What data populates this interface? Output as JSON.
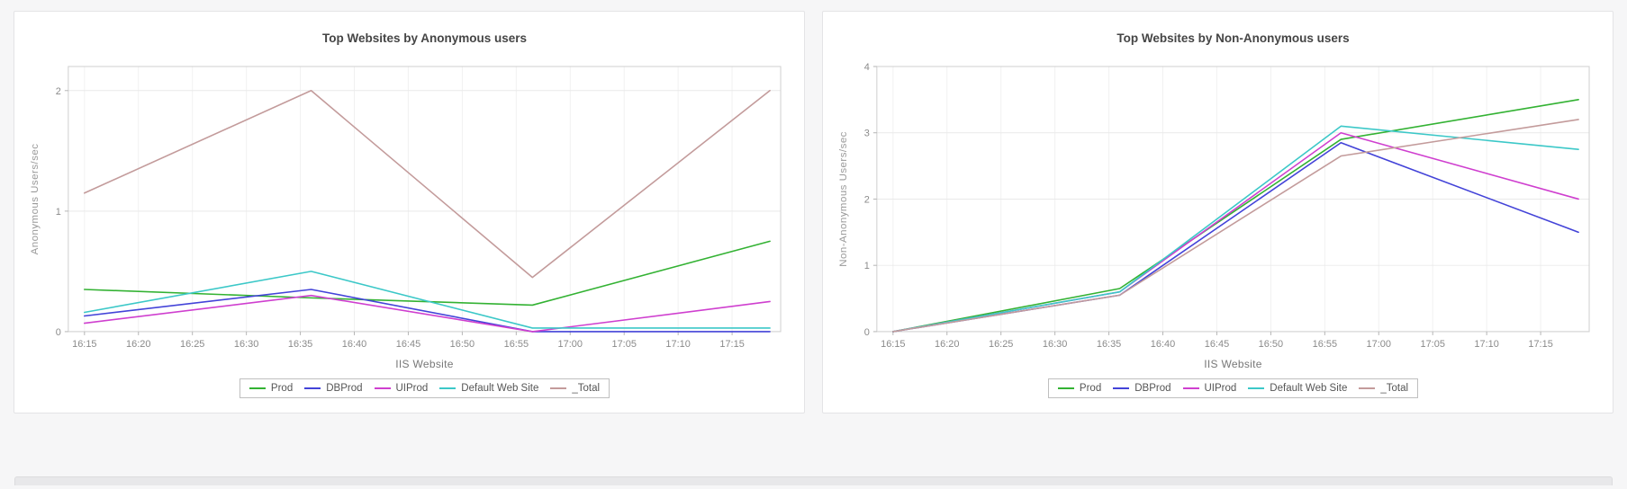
{
  "page": {
    "background_color": "#f6f6f7",
    "panel_border_color": "#e4e4e6"
  },
  "chart_data": [
    {
      "id": "anonymous-users",
      "type": "line",
      "title": "Top Websites by Anonymous users",
      "xlabel": "IIS Website",
      "ylabel": "Anonymous Users/sec",
      "x_tick_labels": [
        "16:15",
        "16:20",
        "16:25",
        "16:30",
        "16:35",
        "16:40",
        "16:45",
        "16:50",
        "16:55",
        "17:00",
        "17:05",
        "17:10",
        "17:15"
      ],
      "x_tick_minutes": [
        0,
        5,
        10,
        15,
        20,
        25,
        30,
        35,
        40,
        45,
        50,
        55,
        60
      ],
      "xlim": [
        -1.5,
        64.5
      ],
      "y_ticks": [
        0,
        1,
        2
      ],
      "ylim": [
        0,
        2.2
      ],
      "x_minutes": [
        0,
        21,
        41.5,
        63.5
      ],
      "grid": true,
      "legend_position": "bottom",
      "series": [
        {
          "name": "Prod",
          "color": "#33b233",
          "values": [
            0.35,
            0.28,
            0.22,
            0.75
          ]
        },
        {
          "name": "DBProd",
          "color": "#4343d8",
          "values": [
            0.13,
            0.35,
            0.0,
            0.0
          ]
        },
        {
          "name": "UIProd",
          "color": "#cf3fcf",
          "values": [
            0.07,
            0.3,
            0.0,
            0.25
          ]
        },
        {
          "name": "Default Web Site",
          "color": "#3cc8c8",
          "values": [
            0.16,
            0.5,
            0.03,
            0.03
          ]
        },
        {
          "name": "_Total",
          "color": "#c39b9b",
          "values": [
            1.15,
            2.0,
            0.45,
            2.0
          ]
        }
      ]
    },
    {
      "id": "non-anonymous-users",
      "type": "line",
      "title": "Top Websites by Non-Anonymous users",
      "xlabel": "IIS Website",
      "ylabel": "Non-Anonymous Users/sec",
      "x_tick_labels": [
        "16:15",
        "16:20",
        "16:25",
        "16:30",
        "16:35",
        "16:40",
        "16:45",
        "16:50",
        "16:55",
        "17:00",
        "17:05",
        "17:10",
        "17:15"
      ],
      "x_tick_minutes": [
        0,
        5,
        10,
        15,
        20,
        25,
        30,
        35,
        40,
        45,
        50,
        55,
        60
      ],
      "xlim": [
        -1.5,
        64.5
      ],
      "y_ticks": [
        0,
        1,
        2,
        3,
        4
      ],
      "ylim": [
        0,
        4
      ],
      "x_minutes": [
        0,
        21,
        41.5,
        63.5
      ],
      "grid": true,
      "legend_position": "bottom",
      "series": [
        {
          "name": "Prod",
          "color": "#33b233",
          "values": [
            0,
            0.65,
            2.9,
            3.5
          ]
        },
        {
          "name": "DBProd",
          "color": "#4343d8",
          "values": [
            0,
            0.55,
            2.85,
            1.5
          ]
        },
        {
          "name": "UIProd",
          "color": "#cf3fcf",
          "values": [
            0,
            0.6,
            3.0,
            2.0
          ]
        },
        {
          "name": "Default Web Site",
          "color": "#3cc8c8",
          "values": [
            0,
            0.6,
            3.1,
            2.75
          ]
        },
        {
          "name": "_Total",
          "color": "#c39b9b",
          "values": [
            0,
            0.55,
            2.65,
            3.2
          ]
        }
      ]
    }
  ]
}
